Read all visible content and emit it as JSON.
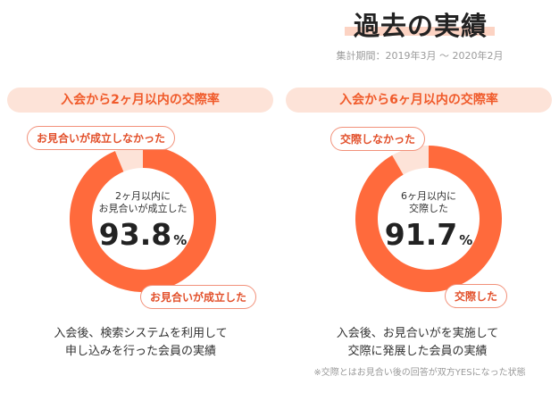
{
  "header": {
    "title": "過去の実績",
    "period": "集計期間：2019年3月 〜 2020年2月"
  },
  "colors": {
    "primary": "#ff6a3c",
    "secondary": "#fde3d8",
    "accent_text": "#f05a2a"
  },
  "chart_data": [
    {
      "type": "pie",
      "title": "入会から2ヶ月以内の交際率",
      "center_label_1": "2ヶ月以内に",
      "center_label_2": "お見合いが成立した",
      "percent": "93.8",
      "unit": "%",
      "slices": [
        {
          "label": "お見合いが成立した",
          "value": 93.8,
          "color": "#ff6a3c"
        },
        {
          "label": "お見合いが成立しなかった",
          "value": 6.2,
          "color": "#fde3d8"
        }
      ],
      "description": [
        "入会後、検索システムを利用して",
        "申し込みを行った会員の実績"
      ]
    },
    {
      "type": "pie",
      "title": "入会から6ヶ月以内の交際率",
      "center_label_1": "6ヶ月以内に",
      "center_label_2": "交際した",
      "percent": "91.7",
      "unit": "%",
      "slices": [
        {
          "label": "交際した",
          "value": 91.7,
          "color": "#ff6a3c"
        },
        {
          "label": "交際しなかった",
          "value": 8.3,
          "color": "#fde3d8"
        }
      ],
      "description": [
        "入会後、お見合いがを実施して",
        "交際に発展した会員の実績"
      ],
      "note": "※交際とはお見合い後の回答が双方YESになった状態"
    }
  ]
}
